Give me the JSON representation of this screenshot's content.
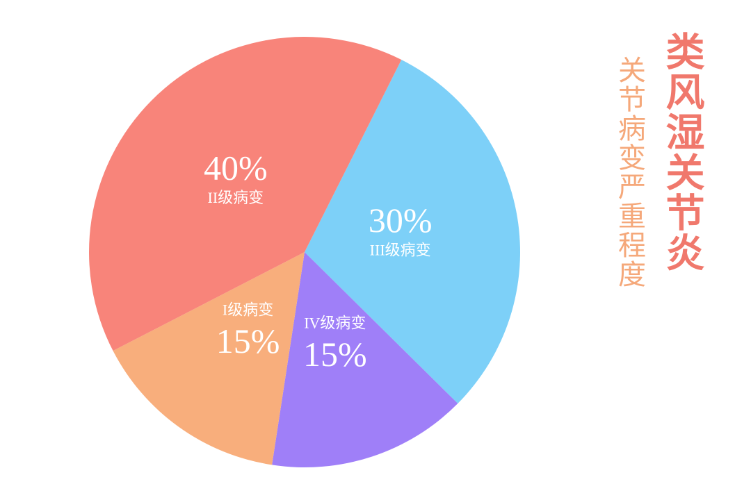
{
  "chart_data": {
    "type": "pie",
    "title": "类风湿关节炎",
    "subtitle": "关节病变严重程度",
    "categories": [
      "III级病变",
      "IV级病变",
      "I级病变",
      "II级病变"
    ],
    "values": [
      30,
      15,
      15,
      40
    ],
    "value_labels": [
      "30%",
      "15%",
      "15%",
      "40%"
    ],
    "colors": [
      "#7dd0f8",
      "#9f7ff8",
      "#f8ae7c",
      "#f8847a"
    ]
  }
}
